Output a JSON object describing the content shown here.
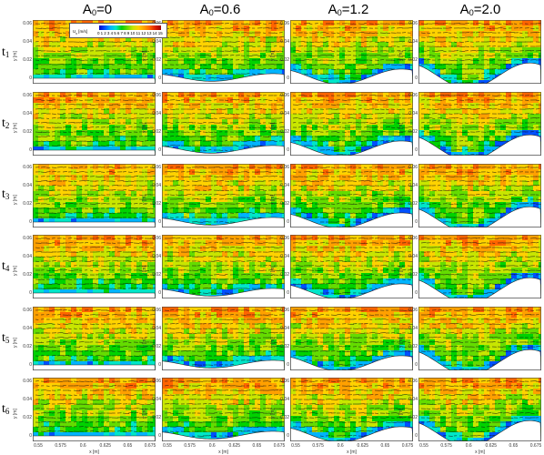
{
  "column_titles": [
    {
      "base": "A",
      "sub": "0",
      "suffix": "=0"
    },
    {
      "base": "A",
      "sub": "0",
      "suffix": "=0.6"
    },
    {
      "base": "A",
      "sub": "0",
      "suffix": "=1.2"
    },
    {
      "base": "A",
      "sub": "0",
      "suffix": "=2.0"
    }
  ],
  "row_labels": [
    {
      "base": "t",
      "sub": "1"
    },
    {
      "base": "t",
      "sub": "2"
    },
    {
      "base": "t",
      "sub": "3"
    },
    {
      "base": "t",
      "sub": "4"
    },
    {
      "base": "t",
      "sub": "5"
    },
    {
      "base": "t",
      "sub": "6"
    }
  ],
  "y_axis": {
    "label": "y [m]",
    "ticks": [
      "0.06",
      "0.04",
      "0.02",
      "0"
    ]
  },
  "x_axis": {
    "label": "x [m]",
    "ticks": [
      "0.55",
      "0.575",
      "0.6",
      "0.625",
      "0.65",
      "0.675"
    ]
  },
  "legend": {
    "label": "U",
    "label_sub": "x",
    "unit": "[m/s]",
    "ticks": [
      "0",
      "1",
      "2",
      "3",
      "4",
      "5",
      "6",
      "7",
      "8",
      "9",
      "10",
      "11",
      "12",
      "13",
      "14",
      "15"
    ]
  },
  "amplitudes": [
    0,
    0.6,
    1.2,
    2.0
  ],
  "colors": {
    "background": "#ffffff",
    "colormap": [
      "#0000c8",
      "#0050ff",
      "#00b4ff",
      "#00e6c8",
      "#00d200",
      "#64dc00",
      "#c8e600",
      "#ffd200",
      "#ffa000",
      "#ff6400",
      "#dc1e00",
      "#a00000"
    ],
    "axis": "#333333"
  }
}
